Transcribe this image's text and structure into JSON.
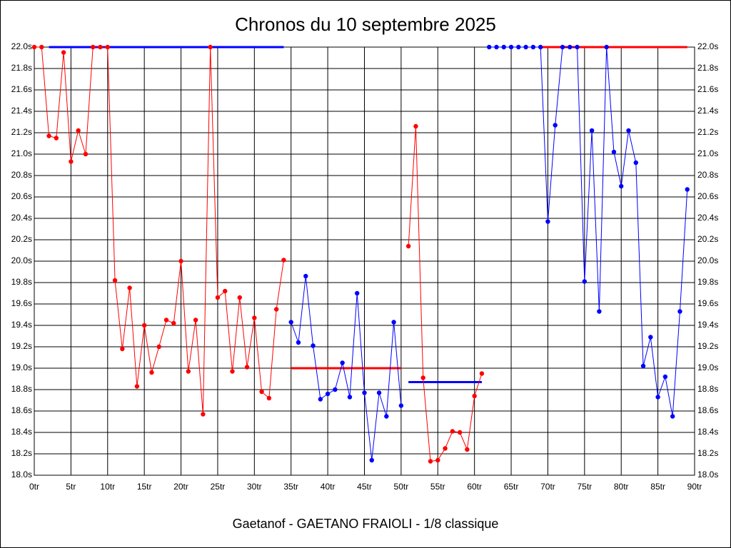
{
  "chart_data": {
    "type": "line",
    "title": "Chronos du 10 septembre 2025",
    "subtitle": "Gaetanof - GAETANO FRAIOLI - 1/8 classique",
    "xlim": [
      0,
      90
    ],
    "xticks": [
      {
        "value": 0,
        "label": "0tr"
      },
      {
        "value": 5,
        "label": "5tr"
      },
      {
        "value": 10,
        "label": "10tr"
      },
      {
        "value": 15,
        "label": "15tr"
      },
      {
        "value": 20,
        "label": "20tr"
      },
      {
        "value": 25,
        "label": "25tr"
      },
      {
        "value": 30,
        "label": "30tr"
      },
      {
        "value": 35,
        "label": "35tr"
      },
      {
        "value": 40,
        "label": "40tr"
      },
      {
        "value": 45,
        "label": "45tr"
      },
      {
        "value": 50,
        "label": "50tr"
      },
      {
        "value": 55,
        "label": "55tr"
      },
      {
        "value": 60,
        "label": "60tr"
      },
      {
        "value": 65,
        "label": "65tr"
      },
      {
        "value": 70,
        "label": "70tr"
      },
      {
        "value": 75,
        "label": "75tr"
      },
      {
        "value": 80,
        "label": "80tr"
      },
      {
        "value": 85,
        "label": "85tr"
      },
      {
        "value": 90,
        "label": "90tr"
      }
    ],
    "ylim": [
      18.0,
      22.0
    ],
    "yticks": [
      {
        "value": 18.0,
        "label": "18.0s"
      },
      {
        "value": 18.2,
        "label": "18.2s"
      },
      {
        "value": 18.4,
        "label": "18.4s"
      },
      {
        "value": 18.6,
        "label": "18.6s"
      },
      {
        "value": 18.8,
        "label": "18.8s"
      },
      {
        "value": 19.0,
        "label": "19.0s"
      },
      {
        "value": 19.2,
        "label": "19.2s"
      },
      {
        "value": 19.4,
        "label": "19.4s"
      },
      {
        "value": 19.6,
        "label": "19.6s"
      },
      {
        "value": 19.8,
        "label": "19.8s"
      },
      {
        "value": 20.0,
        "label": "20.0s"
      },
      {
        "value": 20.2,
        "label": "20.2s"
      },
      {
        "value": 20.4,
        "label": "20.4s"
      },
      {
        "value": 20.6,
        "label": "20.6s"
      },
      {
        "value": 20.8,
        "label": "20.8s"
      },
      {
        "value": 21.0,
        "label": "21.0s"
      },
      {
        "value": 21.2,
        "label": "21.2s"
      },
      {
        "value": 21.4,
        "label": "21.4s"
      },
      {
        "value": 21.6,
        "label": "21.6s"
      },
      {
        "value": 21.8,
        "label": "21.8s"
      },
      {
        "value": 22.0,
        "label": "22.0s"
      }
    ],
    "grid": true,
    "series": [
      {
        "color": "#ff0000",
        "x": [
          0,
          1,
          2,
          3,
          4,
          5,
          6,
          7,
          8,
          9,
          10,
          11,
          12,
          13,
          14,
          15,
          16,
          17,
          18,
          19,
          20,
          21,
          22,
          23,
          24,
          25,
          26,
          27,
          28,
          29,
          30,
          31,
          32,
          33,
          34
        ],
        "values": [
          22.0,
          22.0,
          21.17,
          21.15,
          21.95,
          20.93,
          21.22,
          21.0,
          22.0,
          22.0,
          22.0,
          19.82,
          19.18,
          19.75,
          18.83,
          19.4,
          18.96,
          19.2,
          19.45,
          19.42,
          20.0,
          18.97,
          19.45,
          18.57,
          22.0,
          19.66,
          19.72,
          18.97,
          19.66,
          19.01,
          19.47,
          18.78,
          18.72,
          19.55,
          20.01
        ]
      },
      {
        "color": "#0000ff",
        "x": [
          35,
          36,
          37,
          38,
          39,
          40,
          41,
          42,
          43,
          44,
          45,
          46,
          47,
          48,
          49,
          50
        ],
        "values": [
          19.43,
          19.24,
          19.86,
          19.21,
          18.71,
          18.76,
          18.8,
          19.05,
          18.73,
          19.7,
          18.77,
          18.14,
          18.77,
          18.55,
          19.43,
          18.65
        ]
      },
      {
        "color": "#ff0000",
        "x": [
          51,
          52,
          53,
          54,
          55,
          56,
          57,
          58,
          59,
          60,
          61
        ],
        "values": [
          20.14,
          21.26,
          18.91,
          18.13,
          18.14,
          18.25,
          18.41,
          18.4,
          18.24,
          18.74,
          18.95
        ]
      },
      {
        "color": "#0000ff",
        "x": [
          62,
          63,
          64,
          65,
          66,
          67,
          68,
          69,
          70,
          71,
          72,
          73,
          74,
          75,
          76,
          77,
          78,
          79,
          80,
          81,
          82,
          83,
          84,
          85,
          86,
          87,
          88,
          89
        ],
        "values": [
          22.0,
          22.0,
          22.0,
          22.0,
          22.0,
          22.0,
          22.0,
          22.0,
          20.37,
          21.27,
          22.0,
          22.0,
          22.0,
          19.81,
          21.22,
          19.53,
          22.0,
          21.02,
          20.7,
          21.22,
          20.92,
          19.02,
          19.29,
          18.73,
          18.92,
          18.55,
          19.53,
          20.67
        ]
      }
    ],
    "reference_lines": [
      {
        "color": "#0000ff",
        "value": 22.0,
        "x": [
          2,
          34
        ]
      },
      {
        "color": "#ff0000",
        "value": 19.0,
        "x": [
          35,
          50
        ]
      },
      {
        "color": "#0000ff",
        "value": 18.87,
        "x": [
          51,
          61
        ]
      },
      {
        "color": "#ff0000",
        "value": 22.0,
        "x": [
          69,
          89
        ]
      }
    ]
  }
}
